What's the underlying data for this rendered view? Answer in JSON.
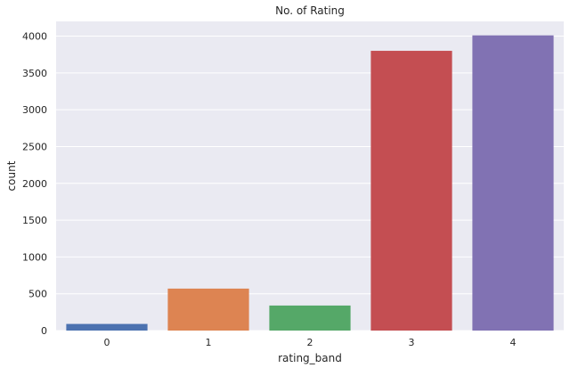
{
  "chart_data": {
    "type": "bar",
    "title": "No. of Rating",
    "xlabel": "rating_band",
    "ylabel": "count",
    "categories": [
      "0",
      "1",
      "2",
      "3",
      "4"
    ],
    "values": [
      90,
      570,
      340,
      3800,
      4010
    ],
    "colors": [
      "#4c72b0",
      "#dd8452",
      "#55a868",
      "#c44e52",
      "#8172b3"
    ],
    "ylim": [
      0,
      4200
    ],
    "yticks": [
      0,
      500,
      1000,
      1500,
      2000,
      2500,
      3000,
      3500,
      4000
    ],
    "grid": true,
    "background": "#eaeaf2"
  }
}
